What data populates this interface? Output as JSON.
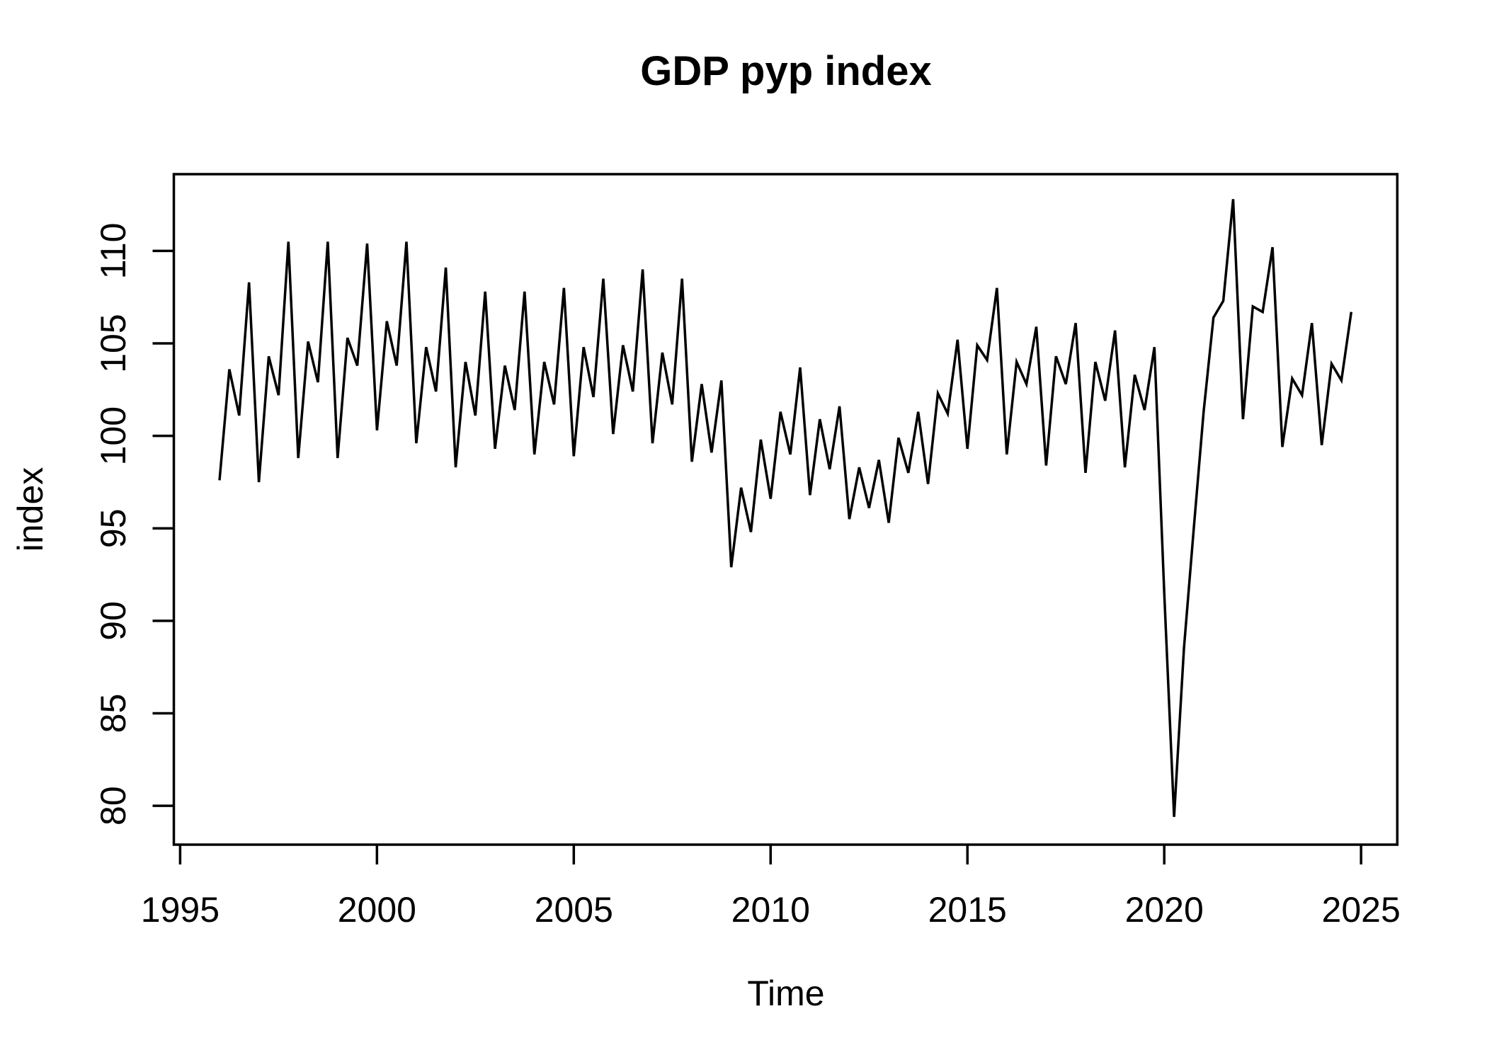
{
  "title": "GDP pyp index",
  "chart_data": {
    "type": "line",
    "title": "GDP pyp index",
    "xlabel": "Time",
    "ylabel": "index",
    "legend": "none",
    "grid": false,
    "line_color": "#000000",
    "x_start": 1996.0,
    "x_step": 0.25,
    "frequency": "quarterly",
    "x_ticks": [
      1995,
      2000,
      2005,
      2010,
      2015,
      2020,
      2025
    ],
    "y_ticks": [
      80,
      85,
      90,
      95,
      100,
      105,
      110
    ],
    "xlim": [
      1994.84,
      2025.92
    ],
    "ylim": [
      77.9,
      114.15
    ],
    "values": [
      97.6,
      103.6,
      101.1,
      108.3,
      97.5,
      104.3,
      102.2,
      110.5,
      98.8,
      105.1,
      102.9,
      110.5,
      98.8,
      105.3,
      103.8,
      110.4,
      100.3,
      106.2,
      103.8,
      110.5,
      99.6,
      104.8,
      102.4,
      109.1,
      98.3,
      104.0,
      101.1,
      107.8,
      99.3,
      103.8,
      101.4,
      107.8,
      99.0,
      104.0,
      101.7,
      108.0,
      98.9,
      104.8,
      102.1,
      108.5,
      100.1,
      104.9,
      102.4,
      109.0,
      99.6,
      104.5,
      101.7,
      108.5,
      98.6,
      102.8,
      99.1,
      103.0,
      92.9,
      97.2,
      94.8,
      99.8,
      96.6,
      101.3,
      99.0,
      103.7,
      96.8,
      100.9,
      98.2,
      101.6,
      95.5,
      98.3,
      96.1,
      98.7,
      95.3,
      99.9,
      98.0,
      101.3,
      97.4,
      102.3,
      101.2,
      105.2,
      99.3,
      104.9,
      104.1,
      108.0,
      99.0,
      104.0,
      102.8,
      105.9,
      98.4,
      104.3,
      102.8,
      106.1,
      98.0,
      104.0,
      101.9,
      105.7,
      98.3,
      103.3,
      101.4,
      104.8,
      91.5,
      79.4,
      88.5,
      95.0,
      101.3,
      106.4,
      107.3,
      112.8,
      100.9,
      107.0,
      106.7,
      110.2,
      99.4,
      103.1,
      102.2,
      106.1,
      99.5,
      103.9,
      103.0,
      106.7
    ]
  }
}
